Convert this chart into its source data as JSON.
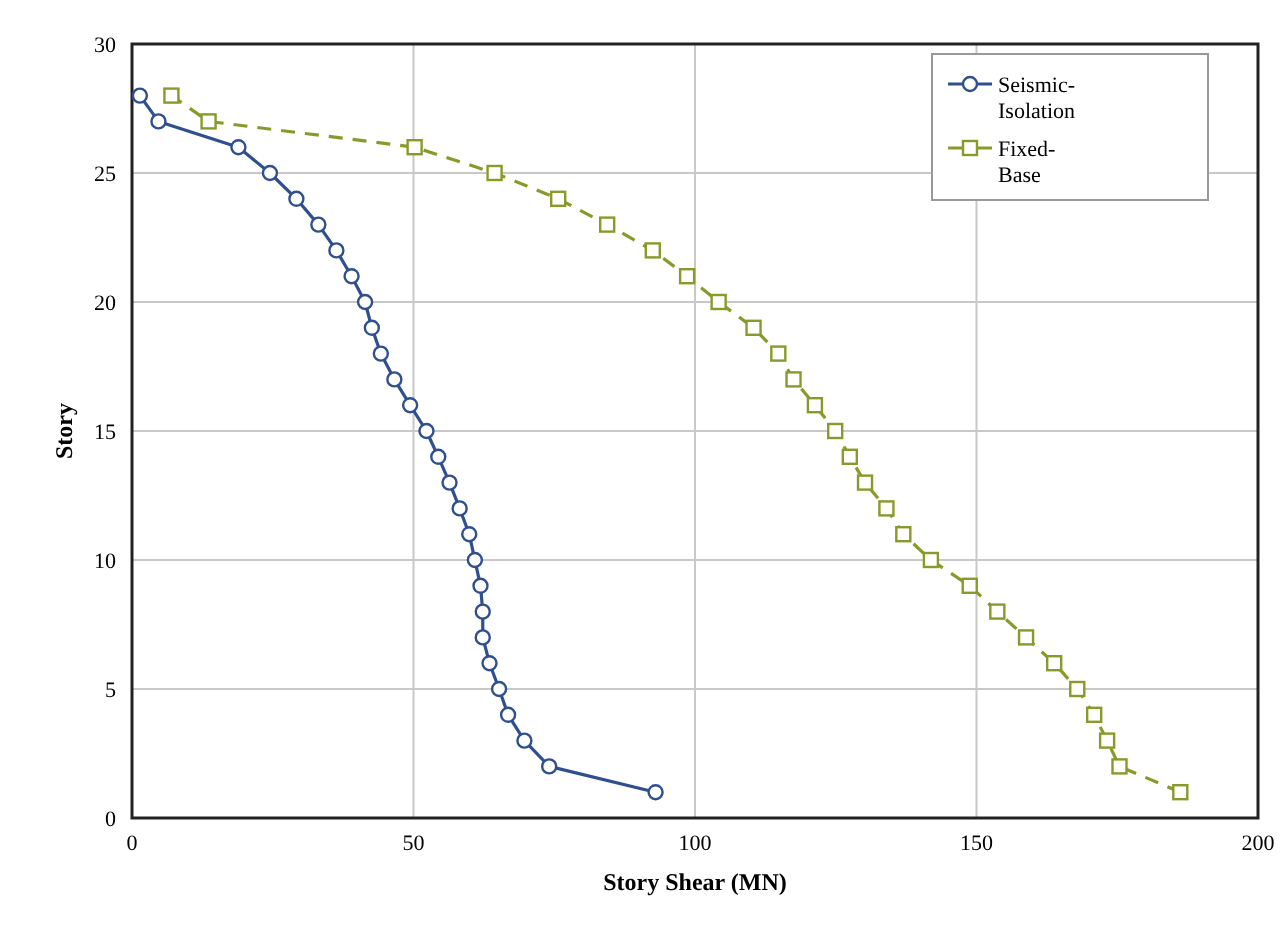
{
  "chart_data": {
    "type": "line",
    "xlabel": "Story Shear (MN)",
    "ylabel": "Story",
    "xlim": [
      0,
      200
    ],
    "xticks": [
      0,
      50,
      100,
      150,
      200
    ],
    "ylim": [
      0,
      30
    ],
    "yticks": [
      0,
      5,
      10,
      15,
      20,
      25,
      30
    ],
    "grid": true,
    "legend": "top right",
    "series": [
      {
        "name": "Seismic-Isolation",
        "color": "#2f4f8f",
        "marker": "circle",
        "line_style": "solid",
        "x": [
          93,
          74.1,
          69.7,
          66.8,
          65.2,
          63.5,
          62.3,
          62.3,
          61.9,
          60.9,
          59.9,
          58.2,
          56.4,
          54.4,
          52.3,
          49.4,
          46.6,
          44.2,
          42.6,
          41.4,
          39,
          36.3,
          33.1,
          29.2,
          24.5,
          18.9,
          4.7,
          1.4
        ],
        "values": [
          1,
          2,
          3,
          4,
          5,
          6,
          7,
          8,
          9,
          10,
          11,
          12,
          13,
          14,
          15,
          16,
          17,
          18,
          19,
          20,
          21,
          22,
          23,
          24,
          25,
          26,
          27,
          28
        ]
      },
      {
        "name": "Fixed-Base",
        "color": "#8a9a2a",
        "marker": "square",
        "line_style": "dashed",
        "x": [
          186.2,
          175.4,
          173.2,
          170.9,
          167.9,
          163.8,
          158.8,
          153.7,
          148.8,
          141.9,
          137,
          134,
          130.2,
          127.5,
          124.9,
          121.3,
          117.5,
          114.8,
          110.4,
          104.2,
          98.6,
          92.5,
          84.4,
          75.7,
          64.4,
          50.2,
          13.6,
          7
        ],
        "values": [
          1,
          2,
          3,
          4,
          5,
          6,
          7,
          8,
          9,
          10,
          11,
          12,
          13,
          14,
          15,
          16,
          17,
          18,
          19,
          20,
          21,
          22,
          23,
          24,
          25,
          26,
          27,
          28
        ]
      }
    ]
  }
}
